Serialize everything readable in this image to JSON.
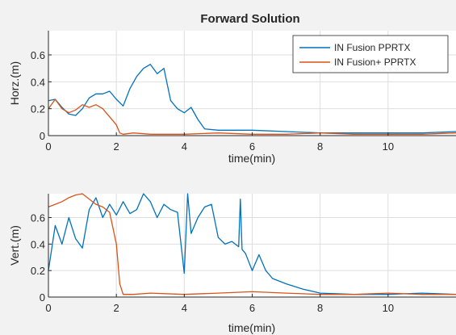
{
  "chart_data": [
    {
      "type": "line",
      "title": "Forward Solution",
      "xlabel": "time(min)",
      "ylabel": "Horz.(m)",
      "xlim": [
        0,
        12
      ],
      "ylim": [
        0,
        0.78
      ],
      "xticks": [
        0,
        2,
        4,
        6,
        8,
        10
      ],
      "yticks": [
        0,
        0.2,
        0.4,
        0.6
      ],
      "grid": true,
      "legend_position": "top-right",
      "series": [
        {
          "name": "IN Fusion PPRTX",
          "color": "#0072BD",
          "x": [
            0,
            0.2,
            0.4,
            0.6,
            0.8,
            1.0,
            1.2,
            1.4,
            1.6,
            1.8,
            2.0,
            2.2,
            2.4,
            2.6,
            2.8,
            3.0,
            3.2,
            3.4,
            3.6,
            3.8,
            4.0,
            4.2,
            4.4,
            4.6,
            5.0,
            6.0,
            7.0,
            8.0,
            9.0,
            10.0,
            11.0,
            12.0
          ],
          "y": [
            0.26,
            0.27,
            0.21,
            0.16,
            0.15,
            0.2,
            0.28,
            0.31,
            0.31,
            0.33,
            0.27,
            0.22,
            0.35,
            0.44,
            0.5,
            0.53,
            0.46,
            0.5,
            0.26,
            0.2,
            0.17,
            0.21,
            0.12,
            0.05,
            0.04,
            0.04,
            0.03,
            0.02,
            0.02,
            0.02,
            0.02,
            0.03
          ]
        },
        {
          "name": "IN Fusion+ PPRTX",
          "color": "#D95319",
          "x": [
            0,
            0.2,
            0.4,
            0.6,
            0.8,
            1.0,
            1.2,
            1.4,
            1.6,
            1.8,
            2.0,
            2.1,
            2.2,
            2.5,
            3.0,
            4.0,
            5.0,
            6.0,
            7.0,
            8.0,
            9.0,
            10.0,
            11.0,
            12.0
          ],
          "y": [
            0.2,
            0.27,
            0.2,
            0.17,
            0.19,
            0.23,
            0.21,
            0.23,
            0.2,
            0.14,
            0.08,
            0.02,
            0.01,
            0.02,
            0.01,
            0.01,
            0.02,
            0.01,
            0.01,
            0.02,
            0.01,
            0.01,
            0.01,
            0.02
          ]
        }
      ]
    },
    {
      "type": "line",
      "title": "",
      "xlabel": "time(min)",
      "ylabel": "Vert.(m)",
      "xlim": [
        0,
        12
      ],
      "ylim": [
        0,
        0.78
      ],
      "xticks": [
        0,
        2,
        4,
        6,
        8,
        10
      ],
      "yticks": [
        0,
        0.2,
        0.4,
        0.6
      ],
      "grid": true,
      "series": [
        {
          "name": "IN Fusion PPRTX",
          "color": "#0072BD",
          "x": [
            0,
            0.2,
            0.4,
            0.6,
            0.8,
            1.0,
            1.2,
            1.4,
            1.6,
            1.8,
            2.0,
            2.2,
            2.4,
            2.6,
            2.8,
            3.0,
            3.2,
            3.4,
            3.6,
            3.8,
            4.0,
            4.1,
            4.2,
            4.4,
            4.6,
            4.8,
            5.0,
            5.2,
            5.4,
            5.6,
            5.65,
            5.7,
            5.8,
            6.0,
            6.2,
            6.4,
            6.6,
            7.0,
            7.5,
            8.0,
            9.0,
            10.0,
            11.0,
            12.0
          ],
          "y": [
            0.2,
            0.54,
            0.4,
            0.6,
            0.44,
            0.37,
            0.66,
            0.75,
            0.6,
            0.7,
            0.62,
            0.72,
            0.63,
            0.66,
            0.78,
            0.72,
            0.6,
            0.7,
            0.66,
            0.64,
            0.18,
            0.78,
            0.48,
            0.6,
            0.68,
            0.7,
            0.45,
            0.4,
            0.42,
            0.38,
            0.74,
            0.36,
            0.33,
            0.2,
            0.32,
            0.2,
            0.14,
            0.1,
            0.06,
            0.03,
            0.02,
            0.02,
            0.03,
            0.02
          ]
        },
        {
          "name": "IN Fusion+ PPRTX",
          "color": "#D95319",
          "x": [
            0,
            0.2,
            0.4,
            0.6,
            0.8,
            1.0,
            1.2,
            1.4,
            1.6,
            1.8,
            2.0,
            2.1,
            2.2,
            2.5,
            3.0,
            4.0,
            5.0,
            6.0,
            7.0,
            8.0,
            9.0,
            10.0,
            11.0,
            12.0
          ],
          "y": [
            0.68,
            0.7,
            0.72,
            0.75,
            0.77,
            0.78,
            0.74,
            0.7,
            0.68,
            0.64,
            0.4,
            0.1,
            0.02,
            0.02,
            0.03,
            0.02,
            0.03,
            0.04,
            0.03,
            0.02,
            0.02,
            0.03,
            0.02,
            0.02
          ]
        }
      ]
    }
  ]
}
